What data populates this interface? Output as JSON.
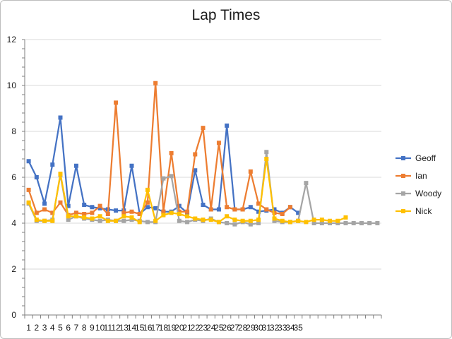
{
  "chart_data": {
    "type": "line",
    "title": "Lap Times",
    "xlabel": "",
    "ylabel": "",
    "ylim": [
      0,
      12
    ],
    "yticks": [
      0,
      2,
      4,
      6,
      8,
      10,
      12
    ],
    "categories": [
      "1",
      "2",
      "3",
      "4",
      "5",
      "6",
      "7",
      "8",
      "9",
      "10",
      "11",
      "12",
      "13",
      "14",
      "15",
      "16",
      "17",
      "18",
      "19",
      "20",
      "21",
      "22",
      "23",
      "24",
      "25",
      "26",
      "27",
      "28",
      "29",
      "30",
      "31",
      "32",
      "33",
      "34",
      "35",
      "",
      "",
      "",
      "",
      "",
      "",
      "",
      "",
      "",
      ""
    ],
    "grid": true,
    "legend_position": "right",
    "series": [
      {
        "name": "Geoff",
        "color": "#4472C4",
        "values": [
          6.7,
          6.0,
          4.85,
          6.55,
          8.6,
          4.75,
          6.5,
          4.8,
          4.7,
          4.65,
          4.6,
          4.55,
          4.55,
          6.5,
          4.4,
          4.7,
          4.65,
          4.5,
          4.5,
          4.75,
          4.45,
          6.3,
          4.8,
          4.6,
          4.6,
          8.25,
          4.6,
          4.6,
          4.7,
          4.5,
          4.55,
          4.6,
          4.45,
          4.7,
          4.45,
          null,
          null,
          null,
          null,
          null,
          null,
          null,
          null,
          null,
          null
        ]
      },
      {
        "name": "Ian",
        "color": "#ED7D31",
        "values": [
          5.45,
          4.45,
          4.6,
          4.45,
          4.9,
          4.35,
          4.45,
          4.4,
          4.45,
          4.75,
          4.4,
          9.25,
          4.45,
          4.5,
          4.4,
          4.9,
          10.1,
          4.5,
          7.05,
          4.5,
          4.5,
          7.0,
          8.15,
          4.6,
          7.5,
          4.7,
          4.6,
          4.6,
          6.25,
          4.85,
          4.6,
          4.45,
          4.4,
          4.7,
          null,
          null,
          null,
          null,
          null,
          null,
          null,
          null,
          null,
          null,
          null
        ]
      },
      {
        "name": "Woody",
        "color": "#A5A5A5",
        "values": [
          4.85,
          4.1,
          4.1,
          4.15,
          6.1,
          4.15,
          4.3,
          4.2,
          4.15,
          4.1,
          4.15,
          4.1,
          4.1,
          4.15,
          4.1,
          4.05,
          4.05,
          5.95,
          6.05,
          4.1,
          4.05,
          4.15,
          4.1,
          4.2,
          4.05,
          4.0,
          3.95,
          4.05,
          3.95,
          4.0,
          7.1,
          4.1,
          4.05,
          4.05,
          4.1,
          5.75,
          4.0,
          4.0,
          4.0,
          4.0,
          4.0,
          4.0,
          4.0,
          4.0,
          4.0
        ]
      },
      {
        "name": "Nick",
        "color": "#FFC000",
        "values": [
          4.9,
          4.15,
          4.1,
          4.1,
          6.15,
          4.3,
          4.3,
          4.25,
          4.2,
          4.3,
          4.1,
          4.1,
          4.3,
          4.25,
          4.05,
          5.45,
          4.1,
          4.35,
          4.45,
          4.4,
          4.3,
          4.2,
          4.15,
          4.15,
          4.05,
          4.3,
          4.15,
          4.1,
          4.1,
          4.15,
          6.8,
          4.2,
          4.1,
          4.05,
          4.1,
          4.05,
          4.15,
          4.15,
          4.1,
          4.1,
          4.25,
          null,
          null,
          null,
          null
        ]
      }
    ]
  }
}
